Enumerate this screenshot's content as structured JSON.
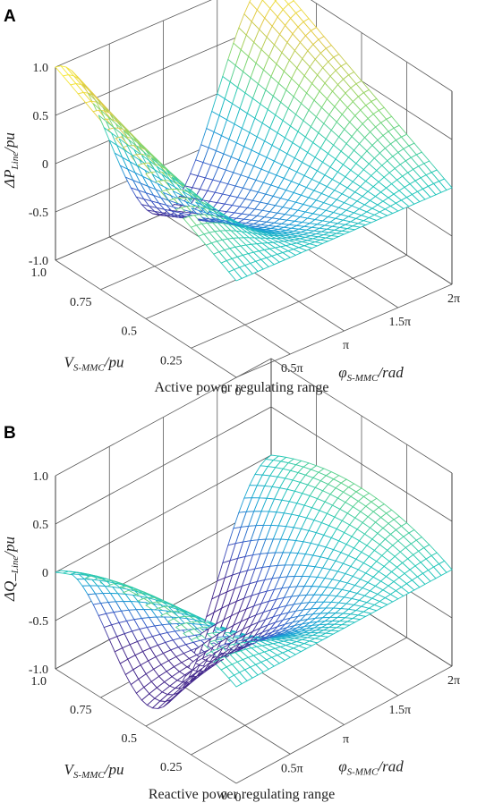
{
  "chart_data": [
    {
      "panel": "A",
      "type": "surface",
      "caption": "Active power regulating range",
      "zlabel": "ΔP",
      "zlabel_sub": "Line",
      "zlabel_unit": "/pu",
      "xlabel": "V",
      "xlabel_sub": "S-MMC",
      "xlabel_unit": "/pu",
      "ylabel": "φ",
      "ylabel_sub": "S-MMC",
      "ylabel_unit": "/rad",
      "xlim": [
        0,
        1
      ],
      "ylim": [
        0,
        6.2832
      ],
      "zlim": [
        -1,
        1
      ],
      "x_ticks": [
        "0",
        "0.25",
        "0.5",
        "0.75",
        "1.0"
      ],
      "y_ticks": [
        "0",
        "0.5π",
        "π",
        "1.5π",
        "2π"
      ],
      "z_ticks": [
        "-1.0",
        "-0.5",
        "0",
        "0.5",
        "1.0"
      ],
      "function": "z = V·cos(φ)",
      "colormap": "viridis-to-yellow"
    },
    {
      "panel": "B",
      "type": "surface",
      "caption": "Reactive power regulating range",
      "zlabel": "ΔQ_",
      "zlabel_sub": "Line",
      "zlabel_unit": "/pu",
      "xlabel": "V",
      "xlabel_sub": "S-MMC",
      "xlabel_unit": "/pu",
      "ylabel": "φ",
      "ylabel_sub": "S-MMC",
      "ylabel_unit": "/rad",
      "xlim": [
        0,
        1
      ],
      "ylim": [
        0,
        6.2832
      ],
      "zlim": [
        -1,
        1
      ],
      "x_ticks": [
        "0",
        "0.25",
        "0.5",
        "0.75",
        "1.0"
      ],
      "y_ticks": [
        "0",
        "0.5π",
        "π",
        "1.5π",
        "2π"
      ],
      "z_ticks": [
        "-1.0",
        "-0.5",
        "0",
        "0.5",
        "1.0"
      ],
      "function": "z = V·cos(φ) − V²",
      "colormap": "viridis-to-yellow"
    }
  ]
}
